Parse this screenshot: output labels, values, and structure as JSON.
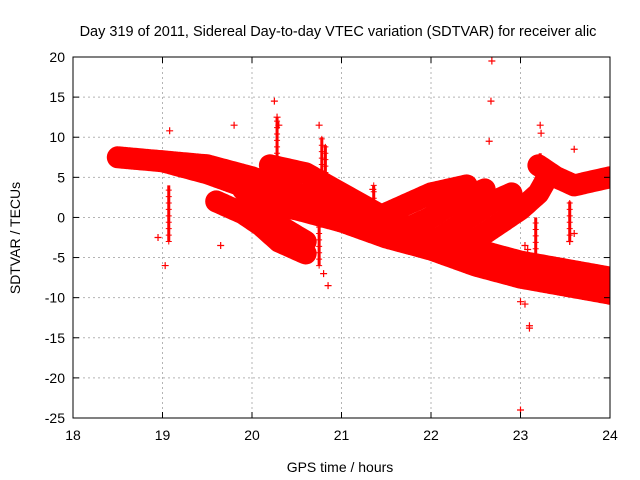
{
  "chart_data": {
    "type": "scatter",
    "title": "Day 319 of 2011, Sidereal Day-to-day VTEC variation (SDTVAR) for receiver alic",
    "xlabel": "GPS time / hours",
    "ylabel": "SDTVAR / TECUs",
    "xlim": [
      18,
      24
    ],
    "ylim": [
      -25,
      20
    ],
    "xticks": [
      18,
      19,
      20,
      21,
      22,
      23,
      24
    ],
    "yticks": [
      -25,
      -20,
      -15,
      -10,
      -5,
      0,
      5,
      10,
      15,
      20
    ],
    "x_tick_labels": [
      "18",
      "19",
      "20",
      "21",
      "22",
      "23",
      "24"
    ],
    "y_tick_labels": [
      "-25",
      "-20",
      "-15",
      "-10",
      "-5",
      "0",
      "5",
      "10",
      "15",
      "20"
    ],
    "grid": true,
    "marker": "+",
    "color": "#ff0000",
    "bands": [
      {
        "x": [
          18.5,
          19.0,
          19.5,
          20.0,
          20.5,
          21.0,
          21.5,
          22.0,
          22.5,
          23.0,
          23.5,
          24.0
        ],
        "y": [
          7.5,
          7.0,
          5.5,
          3.5,
          1.5,
          -0.5,
          -2.0,
          -3.5,
          -5.0,
          -6.5,
          -7.5,
          -8.5
        ]
      },
      {
        "x": [
          19.0,
          19.5,
          20.0,
          20.5,
          21.0,
          21.5,
          22.0,
          22.5,
          23.0,
          23.5,
          24.0
        ],
        "y": [
          7.0,
          6.5,
          5.0,
          3.0,
          1.0,
          -1.0,
          -2.5,
          -4.0,
          -5.5,
          -6.5,
          -7.5
        ]
      },
      {
        "x": [
          20.0,
          20.5,
          21.0,
          21.5,
          22.0,
          22.5,
          23.0,
          23.5,
          24.0
        ],
        "y": [
          2.0,
          1.0,
          -0.5,
          -2.5,
          -4.0,
          -6.0,
          -7.5,
          -8.5,
          -9.5
        ]
      },
      {
        "x": [
          20.2,
          20.6,
          21.0,
          21.4,
          21.8,
          22.2,
          22.5,
          22.8,
          23.2,
          23.6,
          24.0
        ],
        "y": [
          6.5,
          5.5,
          3.0,
          0.5,
          -1.5,
          -3.5,
          -5.0,
          -6.0,
          -7.0,
          -8.0,
          -8.5
        ]
      },
      {
        "x": [
          19.6,
          19.9,
          20.1,
          20.3,
          20.6
        ],
        "y": [
          2.0,
          0.5,
          -1.0,
          -3.0,
          -4.5
        ]
      },
      {
        "x": [
          19.9,
          20.1,
          20.3,
          20.6
        ],
        "y": [
          3.5,
          1.0,
          -1.0,
          -3.0
        ]
      },
      {
        "x": [
          21.4,
          21.6,
          21.8,
          22.0,
          22.2,
          22.4
        ],
        "y": [
          0.0,
          1.0,
          2.0,
          3.0,
          3.5,
          4.0
        ]
      },
      {
        "x": [
          21.8,
          22.0,
          22.2,
          22.4,
          22.6
        ],
        "y": [
          -1.0,
          0.0,
          1.5,
          2.5,
          3.5
        ]
      },
      {
        "x": [
          22.1,
          22.3,
          22.5,
          22.7,
          22.9
        ],
        "y": [
          -2.5,
          -1.0,
          0.5,
          2.0,
          3.0
        ]
      },
      {
        "x": [
          22.4,
          22.6,
          22.8,
          23.0,
          23.2,
          23.3
        ],
        "y": [
          -3.5,
          -2.0,
          -0.5,
          1.0,
          3.0,
          5.0
        ]
      },
      {
        "x": [
          23.2,
          23.4,
          23.6,
          23.8,
          24.0
        ],
        "y": [
          6.5,
          5.0,
          4.0,
          4.5,
          5.0
        ]
      }
    ],
    "outliers": [
      {
        "x": 22.68,
        "y": 19.5
      },
      {
        "x": 22.67,
        "y": 14.5
      },
      {
        "x": 22.65,
        "y": 9.5
      },
      {
        "x": 20.25,
        "y": 14.5
      },
      {
        "x": 20.28,
        "y": 12.5
      },
      {
        "x": 20.3,
        "y": 11.5
      },
      {
        "x": 19.8,
        "y": 11.5
      },
      {
        "x": 19.08,
        "y": 10.8
      },
      {
        "x": 20.75,
        "y": 11.5
      },
      {
        "x": 23.22,
        "y": 11.5
      },
      {
        "x": 23.23,
        "y": 10.5
      },
      {
        "x": 23.6,
        "y": 8.5
      },
      {
        "x": 18.95,
        "y": -2.5
      },
      {
        "x": 19.03,
        "y": -6.0
      },
      {
        "x": 19.65,
        "y": -3.5
      },
      {
        "x": 20.8,
        "y": -7.0
      },
      {
        "x": 20.85,
        "y": -8.5
      },
      {
        "x": 23.0,
        "y": -10.5
      },
      {
        "x": 23.05,
        "y": -10.8
      },
      {
        "x": 23.1,
        "y": -13.5
      },
      {
        "x": 23.1,
        "y": -13.8
      },
      {
        "x": 23.0,
        "y": -24.0
      },
      {
        "x": 23.6,
        "y": -2.0
      },
      {
        "x": 23.55,
        "y": -3.0
      },
      {
        "x": 23.05,
        "y": -3.5
      },
      {
        "x": 23.08,
        "y": -4.0
      },
      {
        "x": 21.35,
        "y": 3.5
      }
    ],
    "spikes": [
      {
        "x": 19.07,
        "y0": -3.0,
        "y1": 4.0
      },
      {
        "x": 20.28,
        "y0": 4.0,
        "y1": 12.5
      },
      {
        "x": 20.75,
        "y0": -6.0,
        "y1": 3.0
      },
      {
        "x": 20.78,
        "y0": 5.0,
        "y1": 10.0
      },
      {
        "x": 20.82,
        "y0": 4.0,
        "y1": 9.0
      },
      {
        "x": 21.36,
        "y0": 0.0,
        "y1": 4.0
      },
      {
        "x": 23.17,
        "y0": -5.5,
        "y1": 0.0
      },
      {
        "x": 23.22,
        "y0": 5.0,
        "y1": 8.0
      },
      {
        "x": 23.55,
        "y0": -3.0,
        "y1": 2.0
      }
    ]
  }
}
